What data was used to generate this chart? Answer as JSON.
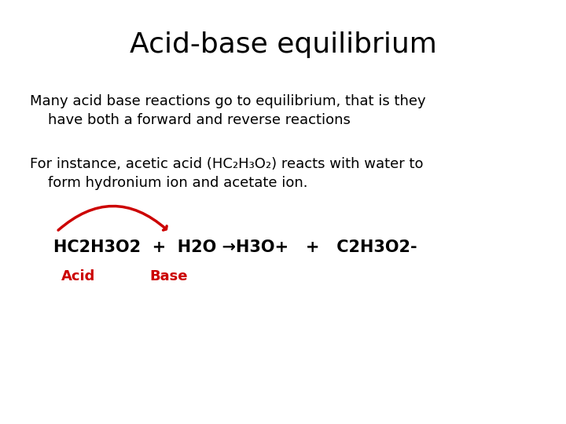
{
  "title": "Acid-base equilibrium",
  "title_fontsize": 26,
  "bg_color": "#ffffff",
  "text_color": "#000000",
  "red_color": "#cc0000",
  "para1_line1": "Many acid base reactions go to equilibrium, that is they",
  "para1_line2": "    have both a forward and reverse reactions",
  "para2_line1": "For instance, acetic acid (HC₂H₃O₂) reacts with water to",
  "para2_line2": "    form hydronium ion and acetate ion.",
  "equation": "HC2H3O2  +  H2O →H3O+   +   C2H3O2-",
  "label_acid": "Acid",
  "label_base": "Base",
  "text_fontsize": 13,
  "eq_fontsize": 15,
  "label_fontsize": 13
}
